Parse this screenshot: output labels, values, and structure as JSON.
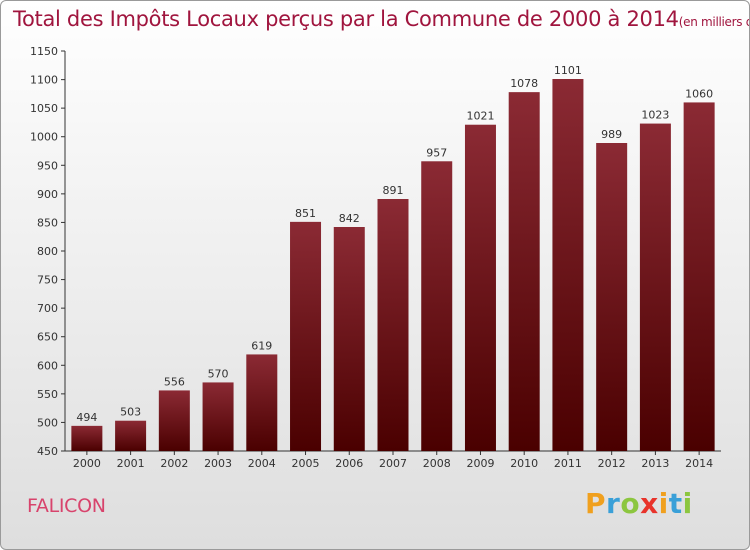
{
  "chart_data": {
    "type": "bar",
    "title": "Total des Impôts Locaux perçus par la Commune de 2000 à 2014",
    "unit_note": "(en milliers d'€)",
    "categories": [
      "2000",
      "2001",
      "2002",
      "2003",
      "2004",
      "2005",
      "2006",
      "2007",
      "2008",
      "2009",
      "2010",
      "2011",
      "2012",
      "2013",
      "2014"
    ],
    "values": [
      494,
      503,
      556,
      570,
      619,
      851,
      842,
      891,
      957,
      1021,
      1078,
      1101,
      989,
      1023,
      1060
    ],
    "ylim": [
      450,
      1150
    ],
    "yticks": [
      450,
      500,
      550,
      600,
      650,
      700,
      750,
      800,
      850,
      900,
      950,
      1000,
      1050,
      1100,
      1150
    ],
    "xlabel": "",
    "ylabel": "",
    "grid": false
  },
  "commune_name": "FALICON",
  "logo": {
    "letters": [
      "P",
      "r",
      "o",
      "x",
      "i",
      "t",
      "i"
    ],
    "colors": [
      "#f0a01e",
      "#3aa0d8",
      "#8cc63f",
      "#e8332a",
      "#f0a01e",
      "#3aa0d8",
      "#8cc63f"
    ]
  },
  "colors": {
    "bar_top": "#8b2a34",
    "bar_bottom": "#4a0000",
    "title": "#a0153e",
    "commune": "#d8436c"
  }
}
